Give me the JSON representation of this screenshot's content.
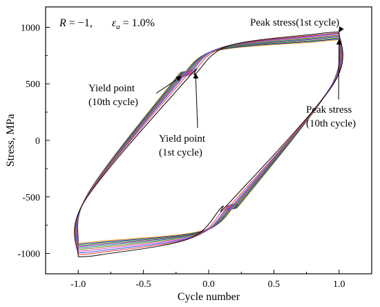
{
  "chart_data": {
    "type": "line",
    "title": "",
    "xlabel": "Cycle number",
    "ylabel": "Stress, MPa",
    "xlim": [
      -1.25,
      1.25
    ],
    "ylim": [
      -1180,
      1180
    ],
    "x_ticks": [
      -1.0,
      -0.5,
      0.0,
      0.5,
      1.0
    ],
    "x_tick_labels": [
      "-1.0",
      "-0.5",
      "0.0",
      "0.5",
      "1.0"
    ],
    "y_ticks": [
      -1000,
      -500,
      0,
      500,
      1000
    ],
    "y_tick_labels": [
      "-1000",
      "-500",
      "0",
      "500",
      "1000"
    ],
    "grid": false,
    "legend": "none",
    "params_text": {
      "r_label": "R",
      "r_value": " = −1,",
      "eps_label": "ε",
      "eps_sub": "a",
      "eps_value": " = 1.0%"
    },
    "series": [
      {
        "cycle": 1,
        "color": "#000000",
        "peak": 960,
        "valley": -1030,
        "yield_x": -0.1,
        "yield_y": 590,
        "knee": 0.18
      },
      {
        "cycle": 2,
        "color": "#e8342b",
        "peak": 950,
        "valley": -1010,
        "yield_x": -0.13,
        "yield_y": 585,
        "knee": 0.2
      },
      {
        "cycle": 3,
        "color": "#3355ee",
        "peak": 945,
        "valley": -995,
        "yield_x": -0.15,
        "yield_y": 580,
        "knee": 0.22
      },
      {
        "cycle": 4,
        "color": "#e040d0",
        "peak": 938,
        "valley": -980,
        "yield_x": -0.16,
        "yield_y": 578,
        "knee": 0.24
      },
      {
        "cycle": 5,
        "color": "#7a7a10",
        "peak": 930,
        "valley": -965,
        "yield_x": -0.17,
        "yield_y": 575,
        "knee": 0.25
      },
      {
        "cycle": 6,
        "color": "#1a8a8a",
        "peak": 922,
        "valley": -952,
        "yield_x": -0.18,
        "yield_y": 572,
        "knee": 0.26
      },
      {
        "cycle": 7,
        "color": "#8a1a8a",
        "peak": 915,
        "valley": -940,
        "yield_x": -0.19,
        "yield_y": 570,
        "knee": 0.27
      },
      {
        "cycle": 8,
        "color": "#2a9a2a",
        "peak": 905,
        "valley": -930,
        "yield_x": -0.2,
        "yield_y": 568,
        "knee": 0.28
      },
      {
        "cycle": 9,
        "color": "#1a1a99",
        "peak": 898,
        "valley": -920,
        "yield_x": -0.205,
        "yield_y": 566,
        "knee": 0.29
      },
      {
        "cycle": 10,
        "color": "#e89a10",
        "peak": 890,
        "valley": -910,
        "yield_x": -0.21,
        "yield_y": 565,
        "knee": 0.3
      }
    ],
    "annotations": [
      {
        "id": "peak1",
        "lines": [
          "Peak stress(1st cycle)"
        ],
        "target": [
          1.0,
          960
        ]
      },
      {
        "id": "yield10",
        "lines": [
          "Yield point",
          "(10th cycle)"
        ],
        "target": [
          -0.21,
          565
        ]
      },
      {
        "id": "yield1",
        "lines": [
          "Yield point",
          "(1st cycle)"
        ],
        "target": [
          -0.1,
          590
        ]
      },
      {
        "id": "peak10",
        "lines": [
          "Peak stress",
          "(10th cycle)"
        ],
        "target": [
          1.0,
          890
        ]
      }
    ]
  }
}
